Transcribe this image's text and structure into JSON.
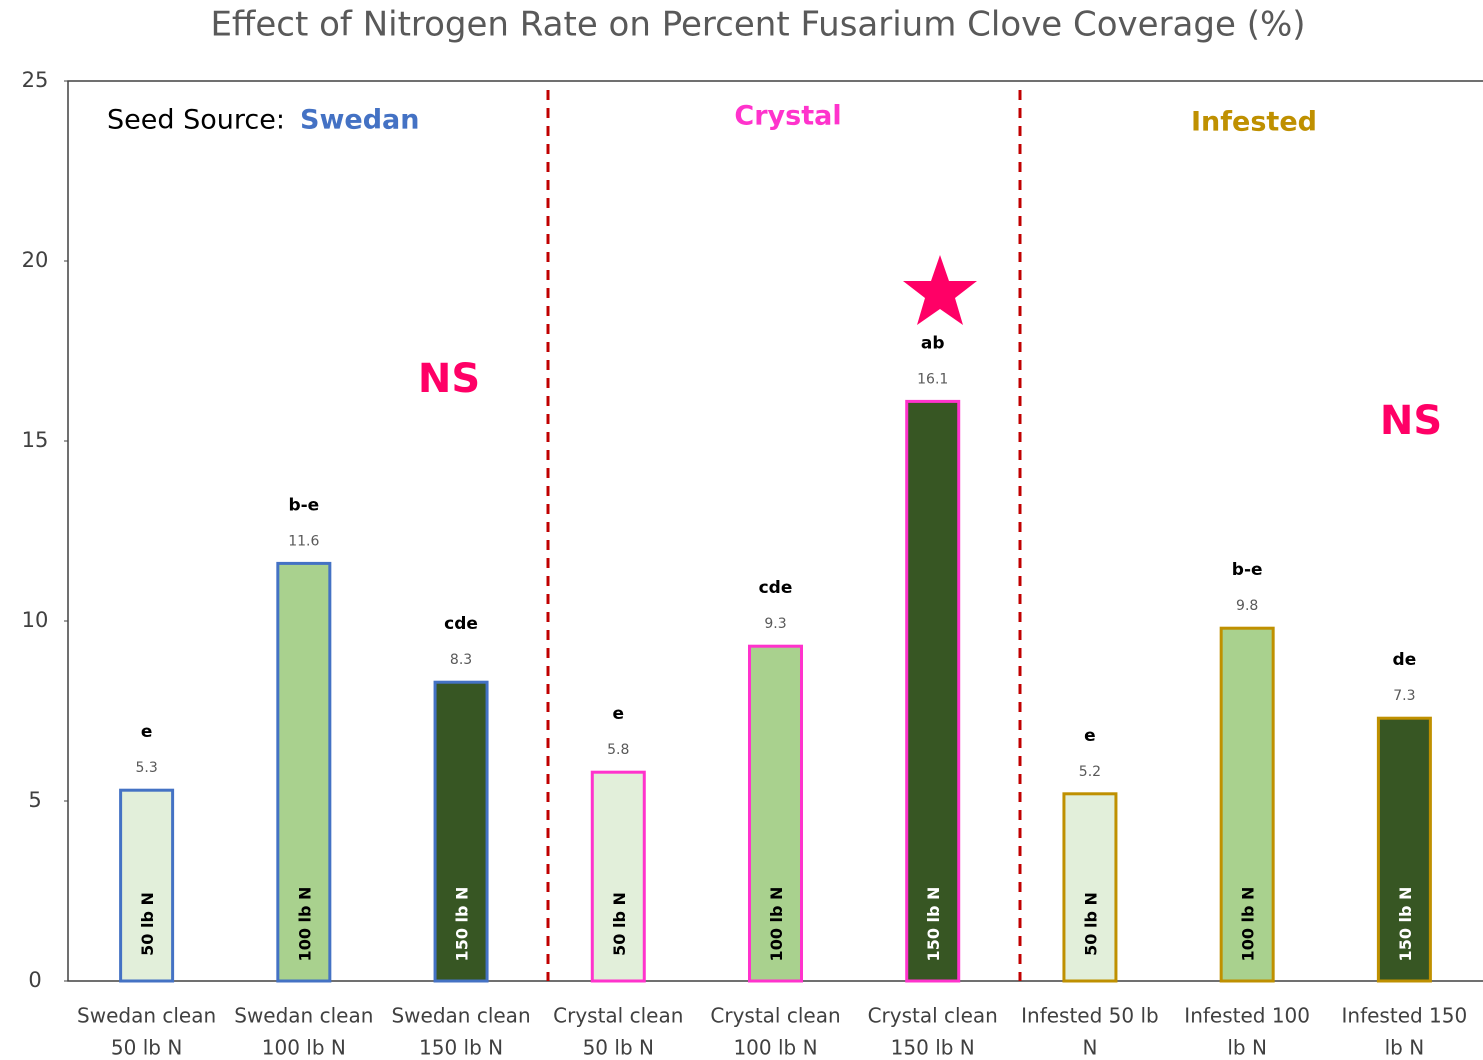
{
  "chart_data": {
    "type": "bar",
    "title": "Effect of Nitrogen Rate on Percent Fusarium Clove Coverage (%)",
    "categories": [
      [
        "Swedan clean",
        "50 lb N"
      ],
      [
        "Swedan clean",
        "100 lb N"
      ],
      [
        "Swedan clean",
        "150 lb N"
      ],
      [
        "Crystal clean",
        "50 lb N"
      ],
      [
        "Crystal clean",
        "100 lb N"
      ],
      [
        "Crystal clean",
        "150 lb N"
      ],
      [
        "Infested 50 lb",
        "N"
      ],
      [
        "Infested 100",
        "lb N"
      ],
      [
        "Infested 150",
        "lb N"
      ]
    ],
    "values": [
      5.3,
      11.6,
      8.3,
      5.8,
      9.3,
      16.1,
      5.2,
      9.8,
      7.3
    ],
    "letters": [
      "e",
      "b-e",
      "cde",
      "e",
      "cde",
      "ab",
      "e",
      "b-e",
      "de"
    ],
    "bar_labels": [
      "50 lb N",
      "100 lb N",
      "150 lb N",
      "50 lb N",
      "100 lb N",
      "150 lb N",
      "50 lb N",
      "100 lb N",
      "150 lb N"
    ],
    "colors": [
      "#e2efda",
      "#a9d18e",
      "#375623",
      "#e2efda",
      "#a9d18e",
      "#375623",
      "#e2efda",
      "#a9d18e",
      "#375623"
    ],
    "edge_colors": [
      "#4472c4",
      "#4472c4",
      "#4472c4",
      "#ff33cc",
      "#ff33cc",
      "#ff33cc",
      "#bf9000",
      "#bf9000",
      "#bf9000"
    ],
    "ylim": [
      0,
      25
    ],
    "yticks": [
      0,
      5,
      10,
      15,
      20,
      25
    ],
    "seed_source_label": "Seed Source:",
    "groups": [
      {
        "name": "Swedan",
        "color": "#4472c4"
      },
      {
        "name": "Crystal",
        "color": "#ff33cc"
      },
      {
        "name": "Infested",
        "color": "#bf9000"
      }
    ],
    "significance": [
      "NS",
      "NS"
    ]
  }
}
